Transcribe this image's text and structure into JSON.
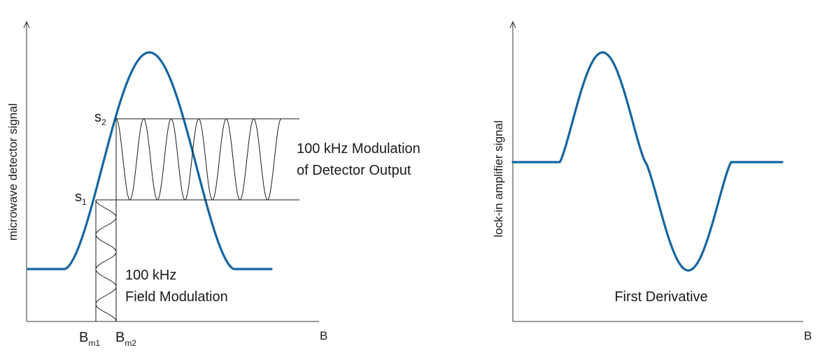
{
  "left_panel": {
    "ylabel": "microwave detector signal",
    "xlabel": "B",
    "s1": "s",
    "s1_sub": "1",
    "s2": "s",
    "s2_sub": "2",
    "bm1": "B",
    "bm1_sub": "m1",
    "bm2": "B",
    "bm2_sub": "m2",
    "output_mod_line1": "100 kHz Modulation",
    "output_mod_line2": "of Detector Output",
    "field_mod_line1": "100 kHz",
    "field_mod_line2": "Field Modulation"
  },
  "right_panel": {
    "ylabel": "lock-in amplifier signal",
    "xlabel": "B",
    "caption": "First Derivative"
  },
  "colors": {
    "curve": "#1565a0",
    "lines": "#1a1a1a"
  }
}
